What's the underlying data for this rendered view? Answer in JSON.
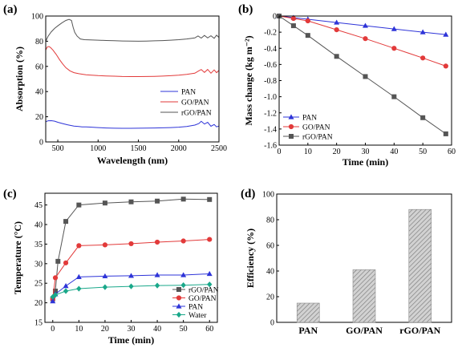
{
  "chart_data": [
    {
      "type": "line",
      "panel_label": "(a)",
      "xlabel": "Wavelength  (nm)",
      "ylabel": "Absorption (%)",
      "xlim": [
        350,
        2500
      ],
      "ylim": [
        0,
        100
      ],
      "xticks": [
        500,
        1000,
        1500,
        2000,
        2500
      ],
      "yticks": [
        0,
        20,
        40,
        60,
        80,
        100
      ],
      "legend_position": "center-right",
      "series": [
        {
          "name": "PAN",
          "color": "#2e34d8",
          "x": [
            350,
            380,
            420,
            460,
            500,
            560,
            620,
            700,
            760,
            800,
            850,
            900,
            1000,
            1100,
            1200,
            1300,
            1400,
            1500,
            1600,
            1700,
            1800,
            1900,
            2000,
            2100,
            2200,
            2250,
            2280,
            2320,
            2360,
            2400,
            2440,
            2470,
            2500
          ],
          "y": [
            16,
            16.8,
            16.9,
            16.5,
            15.6,
            14.6,
            13.6,
            12.6,
            12.2,
            12,
            11.9,
            11.8,
            11.4,
            11.1,
            10.9,
            10.8,
            10.8,
            10.9,
            11,
            11.1,
            11.2,
            11.4,
            11.7,
            12.2,
            13.4,
            14.6,
            16.4,
            14.2,
            15.6,
            12.4,
            13.8,
            12,
            12.6
          ]
        },
        {
          "name": "GO/PAN",
          "color": "#e23a3a",
          "x": [
            350,
            370,
            390,
            410,
            440,
            480,
            520,
            560,
            600,
            650,
            700,
            760,
            800,
            850,
            900,
            1000,
            1100,
            1200,
            1300,
            1400,
            1500,
            1600,
            1700,
            1800,
            1900,
            2000,
            2100,
            2200,
            2250,
            2280,
            2320,
            2360,
            2400,
            2440,
            2470,
            2500
          ],
          "y": [
            73,
            75.5,
            75.8,
            75,
            73,
            69.5,
            65.5,
            62,
            59,
            56.5,
            55,
            54.2,
            53.8,
            53.4,
            53.1,
            52.7,
            52.4,
            52.2,
            52,
            51.9,
            51.9,
            52,
            52.1,
            52.3,
            52.6,
            53,
            53.6,
            54.6,
            56.5,
            57.5,
            55.2,
            57.6,
            54.6,
            57.2,
            55,
            56.8
          ]
        },
        {
          "name": "rGO/PAN",
          "color": "#555555",
          "x": [
            350,
            380,
            420,
            460,
            500,
            550,
            600,
            640,
            670,
            690,
            710,
            740,
            780,
            830,
            900,
            1000,
            1100,
            1200,
            1300,
            1400,
            1500,
            1600,
            1700,
            1800,
            1900,
            2000,
            2100,
            2200,
            2240,
            2280,
            2320,
            2360,
            2400,
            2440,
            2470,
            2500
          ],
          "y": [
            80,
            84,
            87.5,
            90.2,
            92.2,
            94.5,
            96.5,
            97.3,
            96.5,
            91,
            87,
            84,
            81.8,
            81.2,
            81,
            80.8,
            80.6,
            80.4,
            80.2,
            80.1,
            80,
            80.1,
            80.3,
            80.5,
            80.8,
            81.2,
            81.8,
            82.6,
            84.2,
            82.5,
            84.6,
            82.6,
            84.3,
            82.3,
            84.8,
            83
          ]
        }
      ]
    },
    {
      "type": "line",
      "panel_label": "(b)",
      "xlabel": "Time  (min)",
      "ylabel": "Mass change  (kg m⁻²)",
      "xlim": [
        0,
        60
      ],
      "ylim": [
        -1.6,
        0
      ],
      "xticks": [
        0,
        10,
        20,
        30,
        40,
        50,
        60
      ],
      "yticks": [
        0,
        -0.2,
        -0.4,
        -0.6,
        -0.8,
        -1.0,
        -1.2,
        -1.4,
        -1.6
      ],
      "ytick_labels": [
        "0",
        "-0.2",
        "-0.4",
        "-0.6",
        "-0.8",
        "-1.0",
        "-1.2",
        "-1.4",
        "-1.6"
      ],
      "legend_position": "bottom-left",
      "series": [
        {
          "name": "PAN",
          "color": "#2e34d8",
          "marker": "triangle",
          "x": [
            0,
            5,
            10,
            20,
            30,
            40,
            50,
            58
          ],
          "y": [
            0,
            -0.02,
            -0.04,
            -0.08,
            -0.12,
            -0.16,
            -0.2,
            -0.23
          ]
        },
        {
          "name": "GO/PAN",
          "color": "#e23a3a",
          "marker": "circle",
          "x": [
            0,
            5,
            10,
            20,
            30,
            40,
            50,
            58
          ],
          "y": [
            0,
            -0.03,
            -0.06,
            -0.17,
            -0.28,
            -0.4,
            -0.52,
            -0.62
          ]
        },
        {
          "name": "rGO/PAN",
          "color": "#555555",
          "marker": "square",
          "x": [
            0,
            5,
            10,
            20,
            30,
            40,
            50,
            58
          ],
          "y": [
            0,
            -0.12,
            -0.24,
            -0.5,
            -0.75,
            -1.0,
            -1.26,
            -1.46
          ]
        }
      ]
    },
    {
      "type": "line",
      "panel_label": "(c)",
      "xlabel": "Time  (min)",
      "ylabel": "Temperature  (°C)",
      "xlim": [
        -3,
        63
      ],
      "ylim": [
        15,
        48
      ],
      "xticks": [
        0,
        10,
        20,
        30,
        40,
        50,
        60
      ],
      "yticks": [
        15,
        20,
        25,
        30,
        35,
        40,
        45
      ],
      "legend_position": "bottom-right",
      "series": [
        {
          "name": "rGO/PAN",
          "color": "#555555",
          "marker": "square",
          "x": [
            0,
            1,
            2,
            5,
            10,
            20,
            30,
            40,
            50,
            60
          ],
          "y": [
            21,
            23,
            30.6,
            40.8,
            45,
            45.5,
            45.8,
            46,
            46.5,
            46.4
          ]
        },
        {
          "name": "GO/PAN",
          "color": "#e23a3a",
          "marker": "circle",
          "x": [
            0,
            1,
            5,
            10,
            20,
            30,
            40,
            50,
            60
          ],
          "y": [
            21,
            26.4,
            30.2,
            34.6,
            34.8,
            35.1,
            35.5,
            35.8,
            36.2
          ]
        },
        {
          "name": "PAN",
          "color": "#2e34d8",
          "marker": "triangle",
          "x": [
            0,
            1,
            5,
            10,
            20,
            30,
            40,
            50,
            60
          ],
          "y": [
            20.4,
            22.2,
            24.3,
            26.6,
            26.8,
            26.9,
            27.1,
            27.1,
            27.4
          ]
        },
        {
          "name": "Water",
          "color": "#1aa88a",
          "marker": "diamond",
          "x": [
            0,
            1,
            5,
            10,
            20,
            30,
            40,
            50,
            60
          ],
          "y": [
            21.5,
            22,
            23,
            23.6,
            24,
            24.2,
            24.4,
            24.5,
            24.7
          ]
        }
      ]
    },
    {
      "type": "bar",
      "panel_label": "(d)",
      "xlabel": "",
      "ylabel": "Efficiency (%)",
      "ylim": [
        0,
        100
      ],
      "yticks": [
        0,
        20,
        40,
        60,
        80,
        100
      ],
      "categories": [
        "PAN",
        "GO/PAN",
        "rGO/PAN"
      ],
      "values": [
        15,
        41,
        88
      ],
      "bar_color": "#bfbfbf"
    }
  ]
}
